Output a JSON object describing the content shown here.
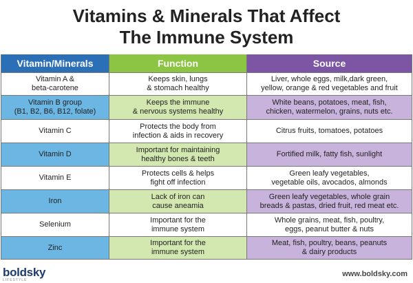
{
  "title": {
    "line1": "Vitamins & Minerals That Affect",
    "line2": "The Immune System"
  },
  "headers": [
    "Vitamin/Minerals",
    "Function",
    "Source"
  ],
  "colors": {
    "blue": "#2b6fb6",
    "green": "#8cc543",
    "purple": "#7d55a5"
  },
  "rows": [
    {
      "name": [
        "Vitamin A &",
        "beta-carotene"
      ],
      "function": [
        "Keeps skin, lungs",
        "& stomach healthy"
      ],
      "source": [
        "Liver, whole eggs, milk,dark green,",
        "yellow, orange & red vegetables and fruit"
      ]
    },
    {
      "name": [
        "Vitamin B group",
        "(B1, B2, B6, B12, folate)"
      ],
      "function": [
        "Keeps the immune",
        "& nervous systems healthy"
      ],
      "source": [
        "White beans, potatoes, meat, fish,",
        "chicken, watermelon, grains, nuts etc."
      ]
    },
    {
      "name": [
        "Vitamin C",
        ""
      ],
      "function": [
        "Protects the body from",
        "infection & aids in recovery"
      ],
      "source": [
        "Citrus fruits, tomatoes, potatoes",
        ""
      ]
    },
    {
      "name": [
        "Vitamin D",
        ""
      ],
      "function": [
        "Important for maintaining",
        "healthy bones & teeth"
      ],
      "source": [
        "Fortified milk, fatty fish, sunlight",
        ""
      ]
    },
    {
      "name": [
        "Vitamin E",
        ""
      ],
      "function": [
        "Protects cells & helps",
        "fight off infection"
      ],
      "source": [
        "Green leafy vegetables,",
        "vegetable oils, avocados, almonds"
      ]
    },
    {
      "name": [
        "Iron",
        ""
      ],
      "function": [
        "Lack of iron can",
        "cause aneamia"
      ],
      "source": [
        "Green leafy vegetables, whole grain",
        "breads & pastas, dried fruit, red meat etc."
      ]
    },
    {
      "name": [
        "Selenium",
        ""
      ],
      "function": [
        "Important for the",
        "immune system"
      ],
      "source": [
        "Whole grains, meat, fish, poultry,",
        "eggs, peanut butter & nuts"
      ]
    },
    {
      "name": [
        "Zinc",
        ""
      ],
      "function": [
        "Important for the",
        "immune system"
      ],
      "source": [
        "Meat, fish, poultry, beans, peanuts",
        "& dairy products"
      ]
    }
  ],
  "footer": {
    "logo": "boldsky",
    "logo_sub": "LIFESTYLE",
    "url": "www.boldsky.com"
  }
}
